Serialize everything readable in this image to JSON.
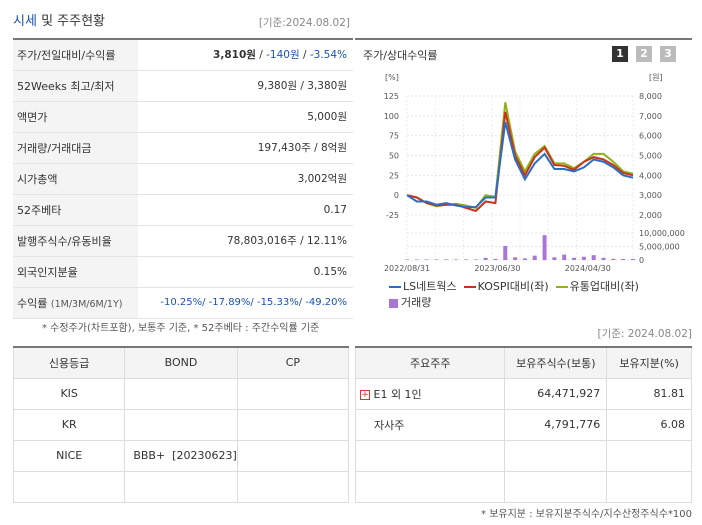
{
  "header": {
    "title_part1": "시세",
    "title_part2": "및 주주현황",
    "date": "[기준:2024.08.02]"
  },
  "price_table": [
    {
      "label": "주가/전일대비/수익률",
      "price": "3,810원",
      "sep1": " / ",
      "change": "-140원",
      "sep2": " / ",
      "rate": "-3.54%"
    },
    {
      "label": "52Weeks 최고/최저",
      "value": "9,380원 / 3,380원"
    },
    {
      "label": "액면가",
      "value": "5,000원"
    },
    {
      "label": "거래량/거래대금",
      "value": "197,430주 / 8억원"
    },
    {
      "label": "시가총액",
      "value": "3,002억원"
    },
    {
      "label": "52주베타",
      "value": "0.17"
    },
    {
      "label": "발행주식수/유동비율",
      "value": "78,803,016주 / 12.11%"
    },
    {
      "label": "외국인지분율",
      "value": "0.15%"
    },
    {
      "label": "수익률",
      "label_small": "(1M/3M/6M/1Y)",
      "value": "-10.25%/ -17.89%/ -15.33%/ -49.20%"
    }
  ],
  "footnote_left": "* 수정주가(차트포함), 보통주 기준, * 52주베타 : 주간수익률 기준",
  "chart": {
    "title": "주가/상대수익률",
    "tabs": [
      "1",
      "2",
      "3"
    ],
    "left_unit": "[%]",
    "right_unit": "[원]",
    "legend": [
      "LS네트웍스",
      "KOSPI대비(좌)",
      "유통업대비(좌)",
      "거래량"
    ],
    "colors": {
      "stock": "#2b6cc4",
      "kospi": "#c8331b",
      "sector": "#8fb31a",
      "volume": "#a876d6"
    }
  },
  "chart_data": {
    "type": "line",
    "x_labels": [
      "2022/08/31",
      "2023/06/30",
      "2024/04/30"
    ],
    "y_left_ticks": [
      "125",
      "100",
      "75",
      "50",
      "25",
      "0",
      "-25"
    ],
    "y_right_ticks": [
      "8,000",
      "7,000",
      "6,000",
      "5,000",
      "4,000",
      "3,000",
      "2,000"
    ],
    "y_volume_ticks": [
      "10,000,000",
      "5,000,000",
      "0"
    ],
    "ylim_left": [
      -25,
      125
    ],
    "series": [
      {
        "name": "LS네트웍스",
        "values": [
          0,
          -8,
          -8,
          -12,
          -10,
          -13,
          -15,
          -15,
          -3,
          -3,
          92,
          45,
          20,
          40,
          52,
          33,
          33,
          30,
          35,
          45,
          42,
          35,
          25,
          22
        ]
      },
      {
        "name": "KOSPI대비(좌)",
        "values": [
          0,
          -3,
          -10,
          -13,
          -12,
          -12,
          -16,
          -20,
          -8,
          -10,
          105,
          50,
          25,
          48,
          60,
          38,
          37,
          32,
          42,
          48,
          45,
          38,
          28,
          25
        ]
      },
      {
        "name": "유통업대비(좌)",
        "values": [
          0,
          -3,
          -10,
          -14,
          -12,
          -11,
          -13,
          -16,
          0,
          -2,
          117,
          55,
          30,
          52,
          62,
          40,
          40,
          34,
          42,
          52,
          52,
          42,
          30,
          27
        ]
      }
    ],
    "volume": [
      0.1,
      0.1,
      0.1,
      0.1,
      0.1,
      0.1,
      0.1,
      0.1,
      0.4,
      0.2,
      2.6,
      0.5,
      0.3,
      0.8,
      4.6,
      0.5,
      1.0,
      0.4,
      0.6,
      0.9,
      0.4,
      0.2,
      0.2,
      0.2
    ]
  },
  "date_right": "[기준: 2024.08.02]",
  "credit": {
    "headers": [
      "신용등급",
      "BOND",
      "CP"
    ],
    "rows": [
      {
        "agency": "KIS",
        "bond": "",
        "cp": ""
      },
      {
        "agency": "KR",
        "bond": "",
        "cp": ""
      },
      {
        "agency": "NICE",
        "bond": "BBB+  [20230623]",
        "cp": ""
      },
      {
        "agency": "",
        "bond": "",
        "cp": ""
      }
    ]
  },
  "shareholders": {
    "headers": [
      "주요주주",
      "보유주식수(보통)",
      "보유지분(%)"
    ],
    "rows": [
      {
        "name": "E1 외 1인",
        "shares": "64,471,927",
        "pct": "81.81"
      },
      {
        "name": "자사주",
        "shares": "4,791,776",
        "pct": "6.08"
      },
      {
        "name": "",
        "shares": "",
        "pct": ""
      },
      {
        "name": "",
        "shares": "",
        "pct": ""
      }
    ]
  },
  "footnote_right": "* 보유지분 : 보유지분주식수/지수산정주식수*100"
}
